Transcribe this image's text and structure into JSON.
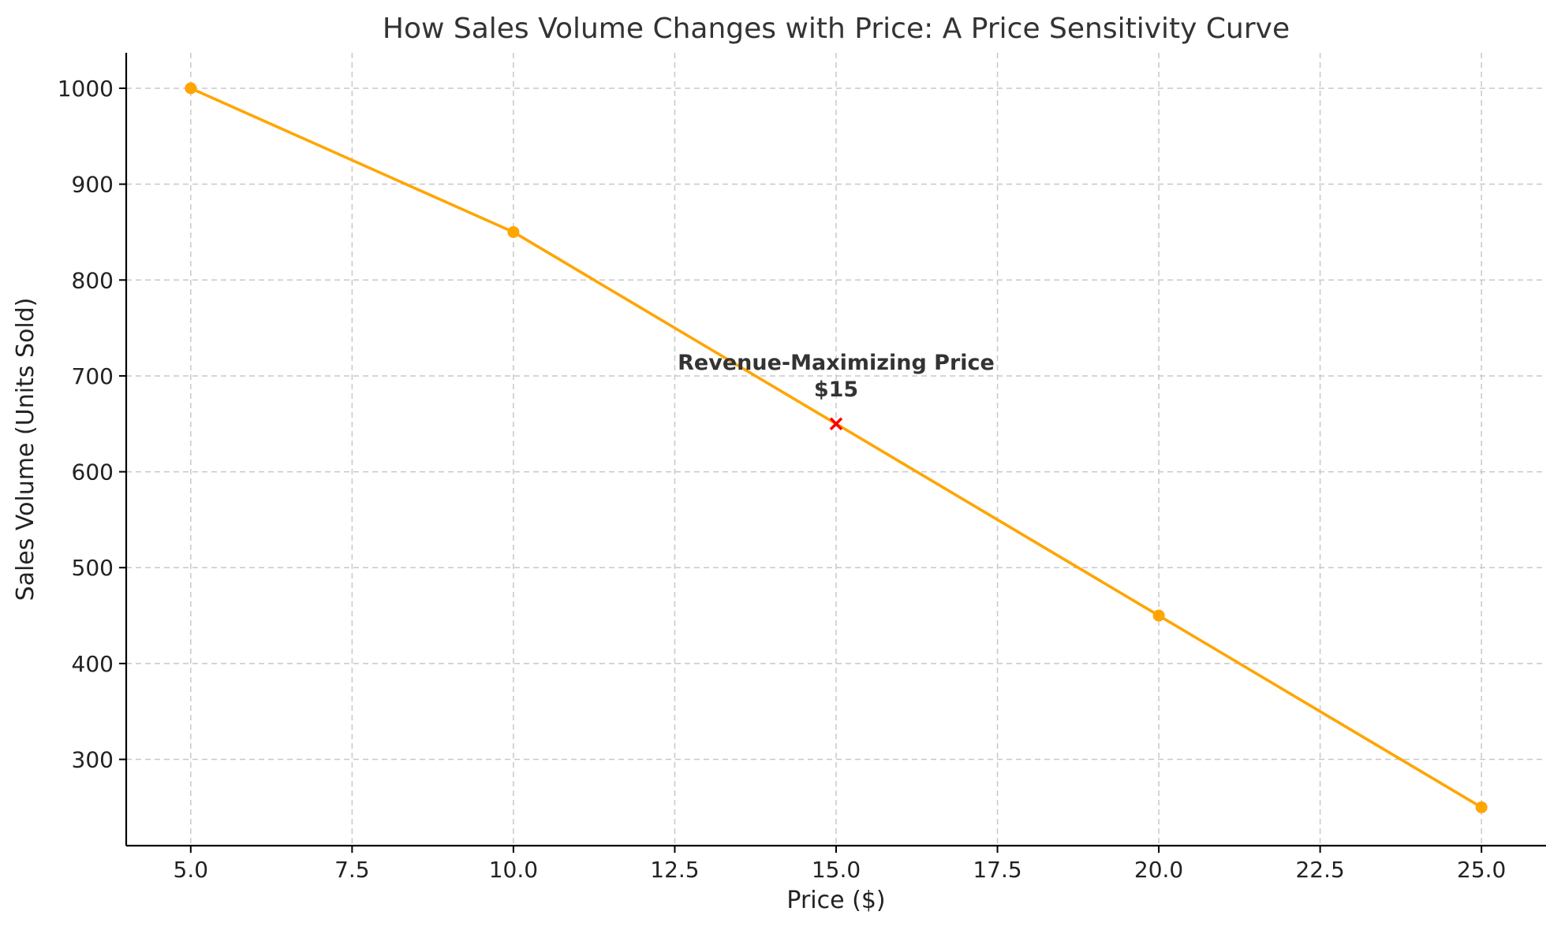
{
  "chart_data": {
    "type": "line",
    "title": "How Sales Volume Changes with Price: A Price Sensitivity Curve",
    "xlabel": "Price ($)",
    "ylabel": "Sales Volume (Units Sold)",
    "xlim": [
      4.0,
      26.0
    ],
    "ylim": [
      210,
      1037
    ],
    "x_ticks": [
      5.0,
      7.5,
      10.0,
      12.5,
      15.0,
      17.5,
      20.0,
      22.5,
      25.0
    ],
    "x_tick_labels": [
      "5.0",
      "7.5",
      "10.0",
      "12.5",
      "15.0",
      "17.5",
      "20.0",
      "22.5",
      "25.0"
    ],
    "y_ticks": [
      300,
      400,
      500,
      600,
      700,
      800,
      900,
      1000
    ],
    "y_tick_labels": [
      "300",
      "400",
      "500",
      "600",
      "700",
      "800",
      "900",
      "1000"
    ],
    "grid": true,
    "series": [
      {
        "color": "#FFA500",
        "marker": "circle",
        "x": [
          5,
          10,
          15,
          20,
          25
        ],
        "y": [
          1000,
          850,
          650,
          450,
          250
        ]
      }
    ],
    "highlight": {
      "x": 15,
      "y": 650,
      "marker": "x",
      "color": "#FF0000",
      "label_line1": "Revenue-Maximizing Price",
      "label_line2": "$15"
    }
  }
}
